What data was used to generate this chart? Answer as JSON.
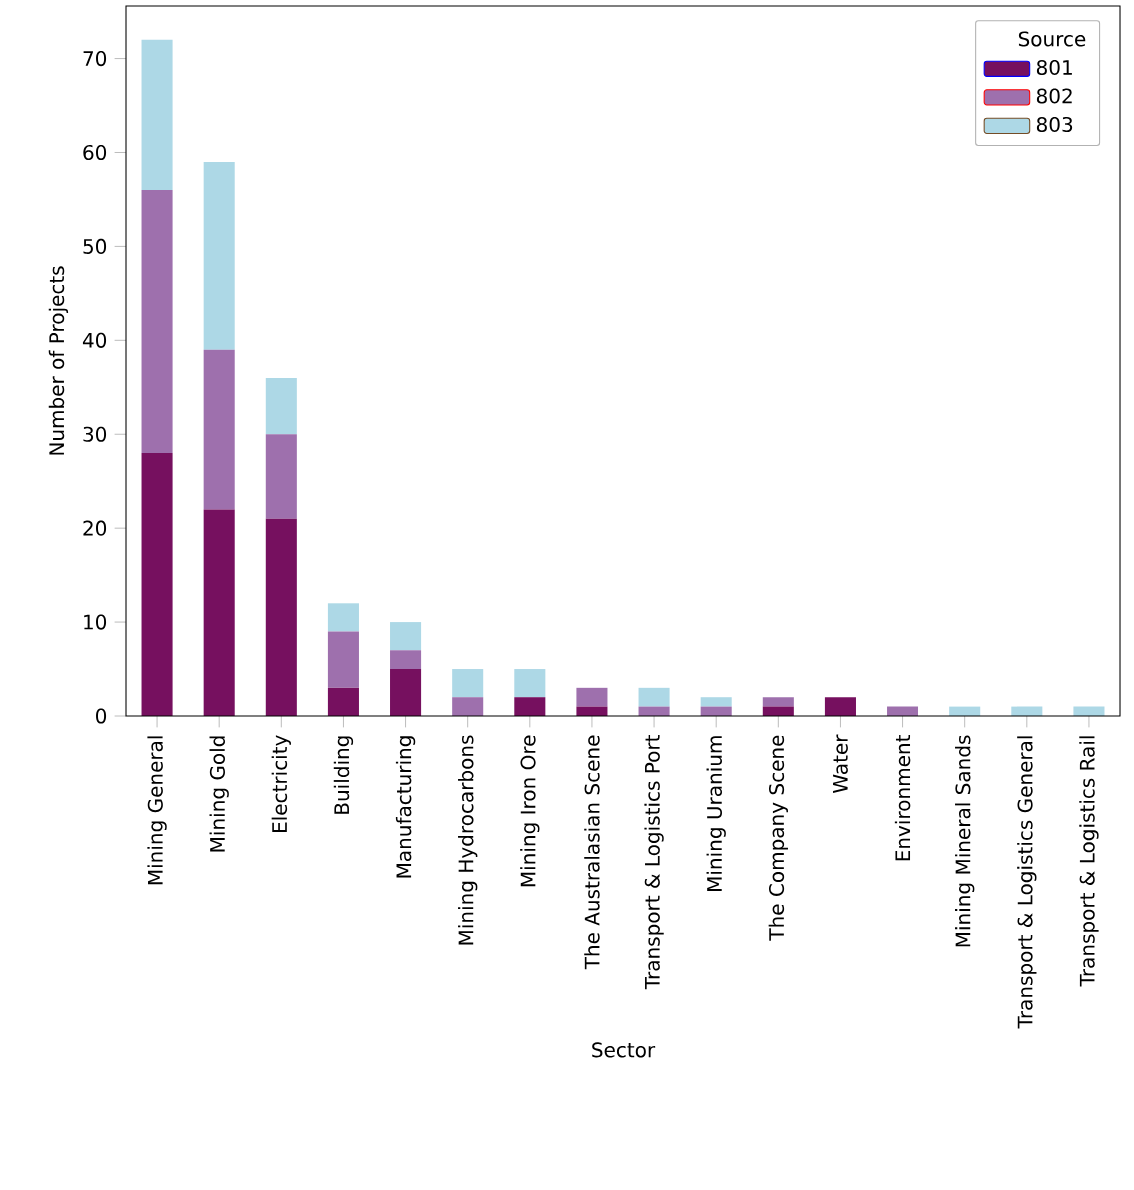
{
  "chart_data": {
    "type": "bar",
    "stacked": true,
    "xlabel": "Sector",
    "ylabel": "Number of Projects",
    "legend_title": "Source",
    "legend": "top right",
    "grid": false,
    "categories": [
      "Mining General",
      "Mining Gold",
      "Electricity",
      "Building",
      "Manufacturing",
      "Mining Hydrocarbons",
      "Mining Iron Ore",
      "The Australasian Scene",
      "Transport & Logistics Port",
      "Mining Uranium",
      "The Company Scene",
      "Water",
      "Environment",
      "Mining Mineral Sands",
      "Transport & Logistics General",
      "Transport & Logistics Rail"
    ],
    "series": [
      {
        "name": "801",
        "color": "#76105f",
        "values": [
          28,
          22,
          21,
          3,
          5,
          0,
          2,
          1,
          0,
          0,
          1,
          2,
          0,
          0,
          0,
          0
        ]
      },
      {
        "name": "802",
        "color": "#9e70ad",
        "values": [
          28,
          17,
          9,
          6,
          2,
          2,
          0,
          2,
          1,
          1,
          1,
          0,
          1,
          0,
          0,
          0
        ]
      },
      {
        "name": "803",
        "color": "#add8e6",
        "values": [
          16,
          20,
          6,
          3,
          3,
          3,
          3,
          0,
          2,
          1,
          0,
          0,
          0,
          1,
          1,
          1
        ]
      }
    ],
    "ylim": [
      0,
      75.6
    ],
    "yticks": [
      0,
      10,
      20,
      30,
      40,
      50,
      60,
      70
    ]
  }
}
